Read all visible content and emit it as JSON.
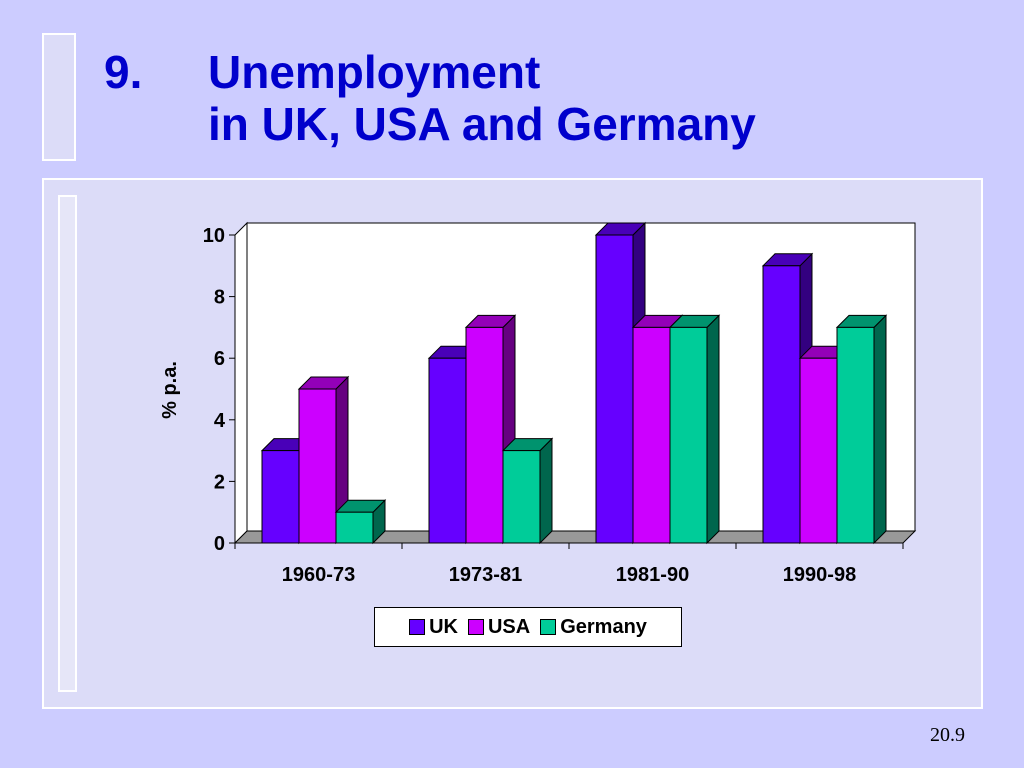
{
  "slide": {
    "title_number": "9.",
    "title_line1": "Unemployment",
    "title_line2": "in UK, USA and Germany",
    "page_number": "20.9"
  },
  "chart_data": {
    "type": "bar",
    "categories": [
      "1960-73",
      "1973-81",
      "1981-90",
      "1990-98"
    ],
    "series": [
      {
        "name": "UK",
        "values": [
          3,
          6,
          10,
          9
        ],
        "color": "#6600ff"
      },
      {
        "name": "USA",
        "values": [
          5,
          7,
          7,
          6
        ],
        "color": "#cc00ff"
      },
      {
        "name": "Germany",
        "values": [
          1,
          3,
          7,
          7
        ],
        "color": "#00cc99"
      }
    ],
    "title": "",
    "xlabel": "",
    "ylabel": "% p.a.",
    "ylim": [
      0,
      10
    ],
    "yticks": [
      0,
      2,
      4,
      6,
      8,
      10
    ],
    "grid": false,
    "legend_position": "bottom",
    "three_d": true
  }
}
